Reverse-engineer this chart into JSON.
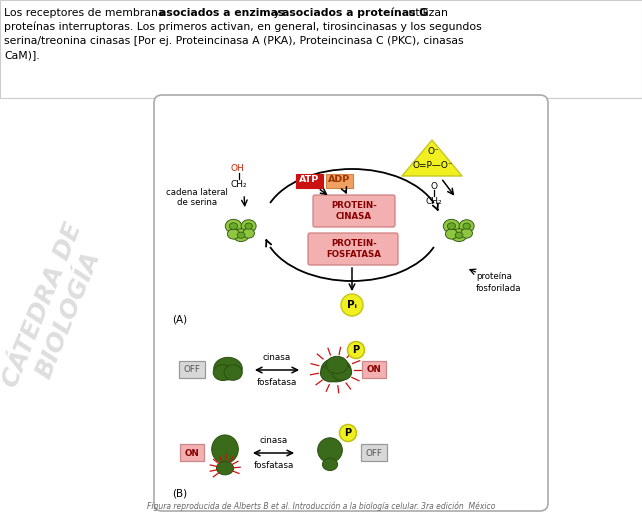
{
  "bg_color": "#ffffff",
  "panel_bg": "#ffffff",
  "panel_border": "#bbbbbb",
  "atp_box_color": "#cc1111",
  "adp_box_color": "#f0a060",
  "protein_cinasa_box": "#f2b0b0",
  "protein_fosfatasa_box": "#f2b0b0",
  "phosphate_bg": "#f0f020",
  "off_box_color": "#d8d8d8",
  "on_box_color": "#f2b0b0",
  "title_text": "Figura reproducida de Alberts B et al. Introducción a la biología celular. 3ra edición  México",
  "protein_green_light": "#8ec63f",
  "protein_green_mid": "#6aaa2a",
  "protein_green_dark": "#3a6b1a",
  "protein_outline": "#2a5010",
  "header_line1_normal": "Los receptores de membrana ",
  "header_line1_bold1": "asociados a enzimas",
  "header_line1_mid": " y ",
  "header_line1_bold2": "asociados a proteínas G",
  "header_line1_end": " utilizan",
  "header_line2": "proteínas interruptoras. Los primeros activan, en general, tirosincinasas y los segundos",
  "header_line3": "serina/treonina cinasas [Por ej. Proteincinasa A (PKA), Proteincinasa C (PKC), cinasas",
  "header_line4": "CaM)]."
}
